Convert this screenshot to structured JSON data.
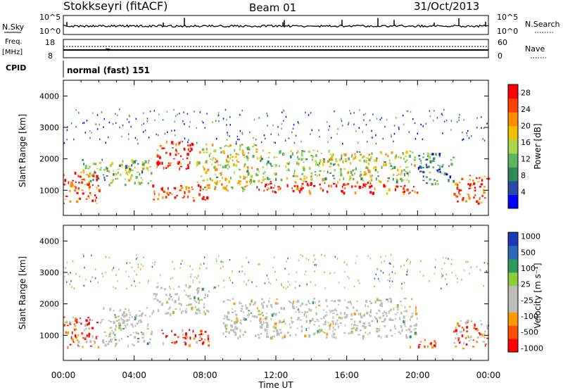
{
  "header": {
    "station": "Stokkseyri (fitACF)",
    "beam": "Beam 01",
    "date": "31/Oct/2013"
  },
  "param_panels": {
    "nsky_label": "N.Sky",
    "nsky_ticks": [
      "10^5",
      "10^0"
    ],
    "nsearch_label": "N.Search",
    "nsearch_ticks": [
      "10^5",
      "10^0"
    ],
    "freq_label": "Freq.",
    "freq_unit": "[MHz]",
    "freq_ticks": [
      "18",
      "8"
    ],
    "nave_label": "Nave",
    "nave_ticks": [
      "60",
      "0"
    ],
    "cpid_label": "CPID",
    "cpid_value": "normal (fast) 151"
  },
  "colors": {
    "power_scale": [
      "#0000ff",
      "#2a4aa8",
      "#2e8a5a",
      "#5cb85c",
      "#a8d84a",
      "#f0c000",
      "#ff8c00",
      "#ff4000",
      "#ff0000"
    ],
    "velocity_scale": [
      "#1a3ab8",
      "#2e6ab8",
      "#2e9a5a",
      "#8ccc3a",
      "#bebeb6",
      "#bebeb6",
      "#ff9a00",
      "#ff5000",
      "#ff0000"
    ],
    "ground_scatter": "#bebeb6"
  },
  "chart_data": [
    {
      "type": "heatmap",
      "title": "",
      "ylabel": "Slant Range [km]",
      "xlabel": "",
      "ylim": [
        200,
        4500
      ],
      "xlim": [
        0,
        24
      ],
      "y_ticks": [
        "1000",
        "2000",
        "3000",
        "4000"
      ],
      "x_ticks": [
        "00:00",
        "04:00",
        "08:00",
        "12:00",
        "16:00",
        "20:00",
        "00:00"
      ],
      "colorbar": {
        "label": "Power [dB]",
        "ticks": [
          "4",
          "8",
          "12",
          "16",
          "20",
          "24",
          "28"
        ],
        "range": [
          0,
          30
        ]
      },
      "bands": [
        {
          "t0": 0.0,
          "t1": 2.0,
          "r0": 600,
          "r1": 1600,
          "level": 0.85
        },
        {
          "t0": 1.0,
          "t1": 5.0,
          "r0": 1200,
          "r1": 2000,
          "level": 0.45
        },
        {
          "t0": 5.2,
          "t1": 7.3,
          "r0": 1700,
          "r1": 2600,
          "level": 0.9
        },
        {
          "t0": 5.0,
          "t1": 8.2,
          "r0": 700,
          "r1": 1200,
          "level": 0.9
        },
        {
          "t0": 7.5,
          "t1": 11.0,
          "r0": 1000,
          "r1": 2500,
          "level": 0.55
        },
        {
          "t0": 11.0,
          "t1": 18.0,
          "r0": 950,
          "r1": 1300,
          "level": 0.95
        },
        {
          "t0": 11.0,
          "t1": 19.8,
          "r0": 1300,
          "r1": 2300,
          "level": 0.5
        },
        {
          "t0": 18.0,
          "t1": 20.0,
          "r0": 900,
          "r1": 1200,
          "level": 0.85
        },
        {
          "t0": 20.0,
          "t1": 22.0,
          "r0": 1200,
          "r1": 2200,
          "level": 0.25
        },
        {
          "t0": 22.0,
          "t1": 24.0,
          "r0": 600,
          "r1": 1500,
          "level": 0.85
        }
      ]
    },
    {
      "type": "heatmap",
      "title": "",
      "ylabel": "Slant Range [km]",
      "xlabel": "Time UT",
      "ylim": [
        200,
        4500
      ],
      "xlim": [
        0,
        24
      ],
      "y_ticks": [
        "1000",
        "2000",
        "3000",
        "4000"
      ],
      "x_ticks": [
        "00:00",
        "04:00",
        "08:00",
        "12:00",
        "16:00",
        "20:00",
        "00:00"
      ],
      "colorbar": {
        "label": "Velocity [m s⁻¹]",
        "ticks": [
          "1000",
          "500",
          "100",
          "25",
          "-25",
          "-100",
          "-500",
          "-1000"
        ]
      },
      "bands": [
        {
          "t0": 0.0,
          "t1": 2.0,
          "r0": 600,
          "r1": 1600,
          "level": 0.8
        },
        {
          "t0": 2.0,
          "t1": 5.0,
          "r0": 700,
          "r1": 1900,
          "level": 0.35
        },
        {
          "t0": 5.0,
          "t1": 8.2,
          "r0": 1700,
          "r1": 2600,
          "level": 0.5
        },
        {
          "t0": 5.5,
          "t1": 8.2,
          "r0": 700,
          "r1": 1200,
          "level": 0.85
        },
        {
          "t0": 9.0,
          "t1": 20.0,
          "r0": 950,
          "r1": 2200,
          "level": 0.5
        },
        {
          "t0": 19.5,
          "t1": 21.0,
          "r0": 600,
          "r1": 900,
          "level": 0.85
        },
        {
          "t0": 22.0,
          "t1": 24.0,
          "r0": 600,
          "r1": 1500,
          "level": 0.75
        }
      ]
    }
  ]
}
